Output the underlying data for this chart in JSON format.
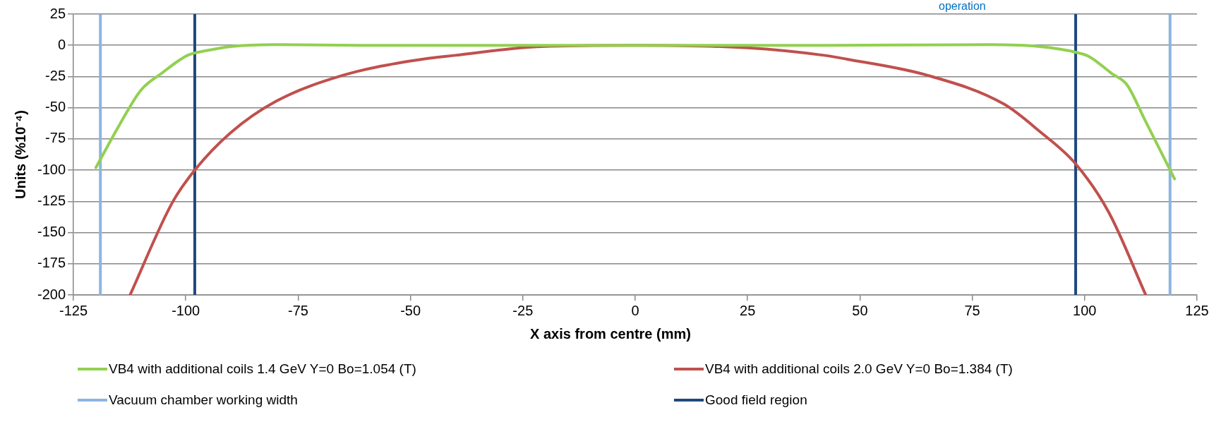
{
  "chart_data": {
    "type": "line",
    "xlabel": "X axis from centre (mm)",
    "ylabel": "Units (%10⁻⁴)",
    "annotations": [
      "operation"
    ],
    "xlim": [
      -125,
      125
    ],
    "xticks": [
      -125,
      -100,
      -75,
      -50,
      -25,
      0,
      25,
      50,
      75,
      100,
      125
    ],
    "ylim": [
      -200,
      25
    ],
    "yticks": [
      25,
      0,
      -25,
      -50,
      -75,
      -100,
      -125,
      -150,
      -175,
      -200
    ],
    "grid": "y",
    "legend": "bottom",
    "marker": "none",
    "line_style": "solid",
    "series": [
      {
        "name": "VB4 with additional coils 1.4 GeV Y=0 Bo=1.054 (T)",
        "color": "#92d050",
        "x": [
          -120,
          -114.8,
          -110,
          -105.4,
          -99.6,
          -95,
          -90,
          -80,
          -60,
          -40,
          -20,
          0,
          20,
          40,
          60,
          79,
          90,
          98,
          101,
          106,
          109.4,
          113.3,
          120
        ],
        "values": [
          -98,
          -64,
          -36,
          -22.5,
          -8,
          -4,
          -1,
          0.5,
          0,
          0,
          0,
          0,
          0,
          0,
          0.3,
          0.5,
          -1,
          -5.5,
          -9,
          -22.5,
          -31.5,
          -59,
          -107
        ]
      },
      {
        "name": "VB4 with additional coils 2.0 GeV Y=0 Bo=1.384 (T)",
        "color": "#c0504d",
        "x": [
          -112.4,
          -103,
          -98,
          -90,
          -80,
          -65,
          -49,
          -40,
          -21,
          0,
          25,
          42,
          47,
          65,
          82,
          90,
          98,
          105.4,
          113.6
        ],
        "values": [
          -200,
          -126,
          -100,
          -70,
          -45,
          -24,
          -12,
          -8,
          -1,
          0,
          -2,
          -8,
          -11,
          -24,
          -47,
          -69,
          -95,
          -134,
          -200
        ]
      },
      {
        "name": "Vacuum chamber working width",
        "color": "#8db4e2",
        "x": [
          -119,
          -119
        ],
        "values": [
          25,
          -200
        ]
      },
      {
        "color": "#8db4e2",
        "x": [
          119,
          119
        ],
        "values": [
          25,
          -200
        ]
      },
      {
        "name": "Good field region",
        "color": "#1f497d",
        "x": [
          -98,
          -98
        ],
        "values": [
          25,
          -200
        ]
      },
      {
        "color": "#1f497d",
        "x": [
          98,
          98
        ],
        "values": [
          25,
          -200
        ]
      }
    ]
  }
}
